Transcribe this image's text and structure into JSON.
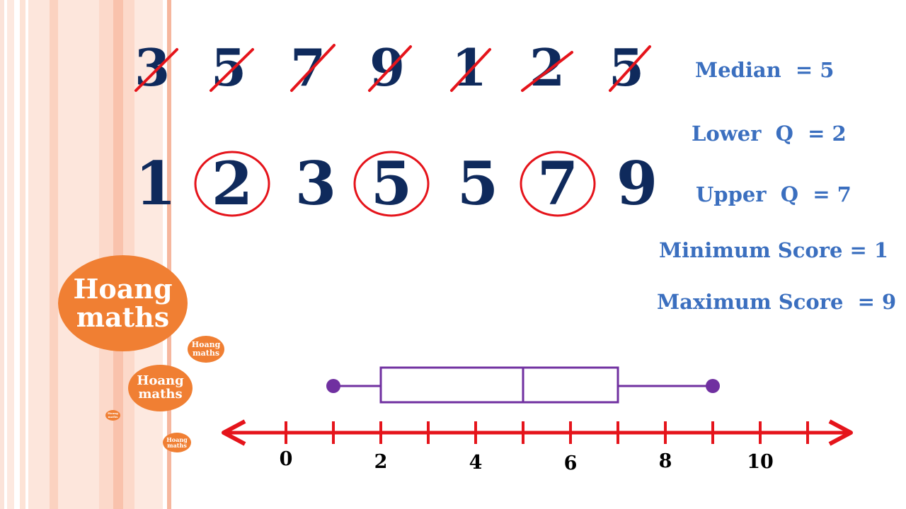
{
  "sequence": [
    "3",
    "5",
    "7",
    "9",
    "1",
    "2",
    "5"
  ],
  "sorted": [
    "1",
    "2",
    "3",
    "5",
    "5",
    "7",
    "9"
  ],
  "circled_indices": [
    1,
    3,
    5
  ],
  "stats": {
    "median": "Median  = 5",
    "lower_q": "Lower  Q  = 2",
    "upper_q": "Upper  Q  = 7",
    "minimum": "Minimum Score = 1",
    "maximum": "Maximum Score  = 9"
  },
  "brand": {
    "line1": "Hoang",
    "line2": "maths"
  },
  "chart_data": {
    "type": "boxplot",
    "min": 1,
    "q1": 2,
    "median": 5,
    "q3": 7,
    "max": 9,
    "axis_range": [
      0,
      11
    ],
    "tick_labels": [
      "0",
      "2",
      "4",
      "6",
      "8",
      "10"
    ],
    "tick_values": [
      0,
      2,
      4,
      6,
      8,
      10
    ]
  },
  "colors": {
    "digits": "#0f2a5c",
    "stats": "#3b6fbf",
    "strike": "#e5141b",
    "circle": "#e5141b",
    "axis": "#e5141b",
    "box": "#7030a0",
    "badge": "#f07f33"
  }
}
